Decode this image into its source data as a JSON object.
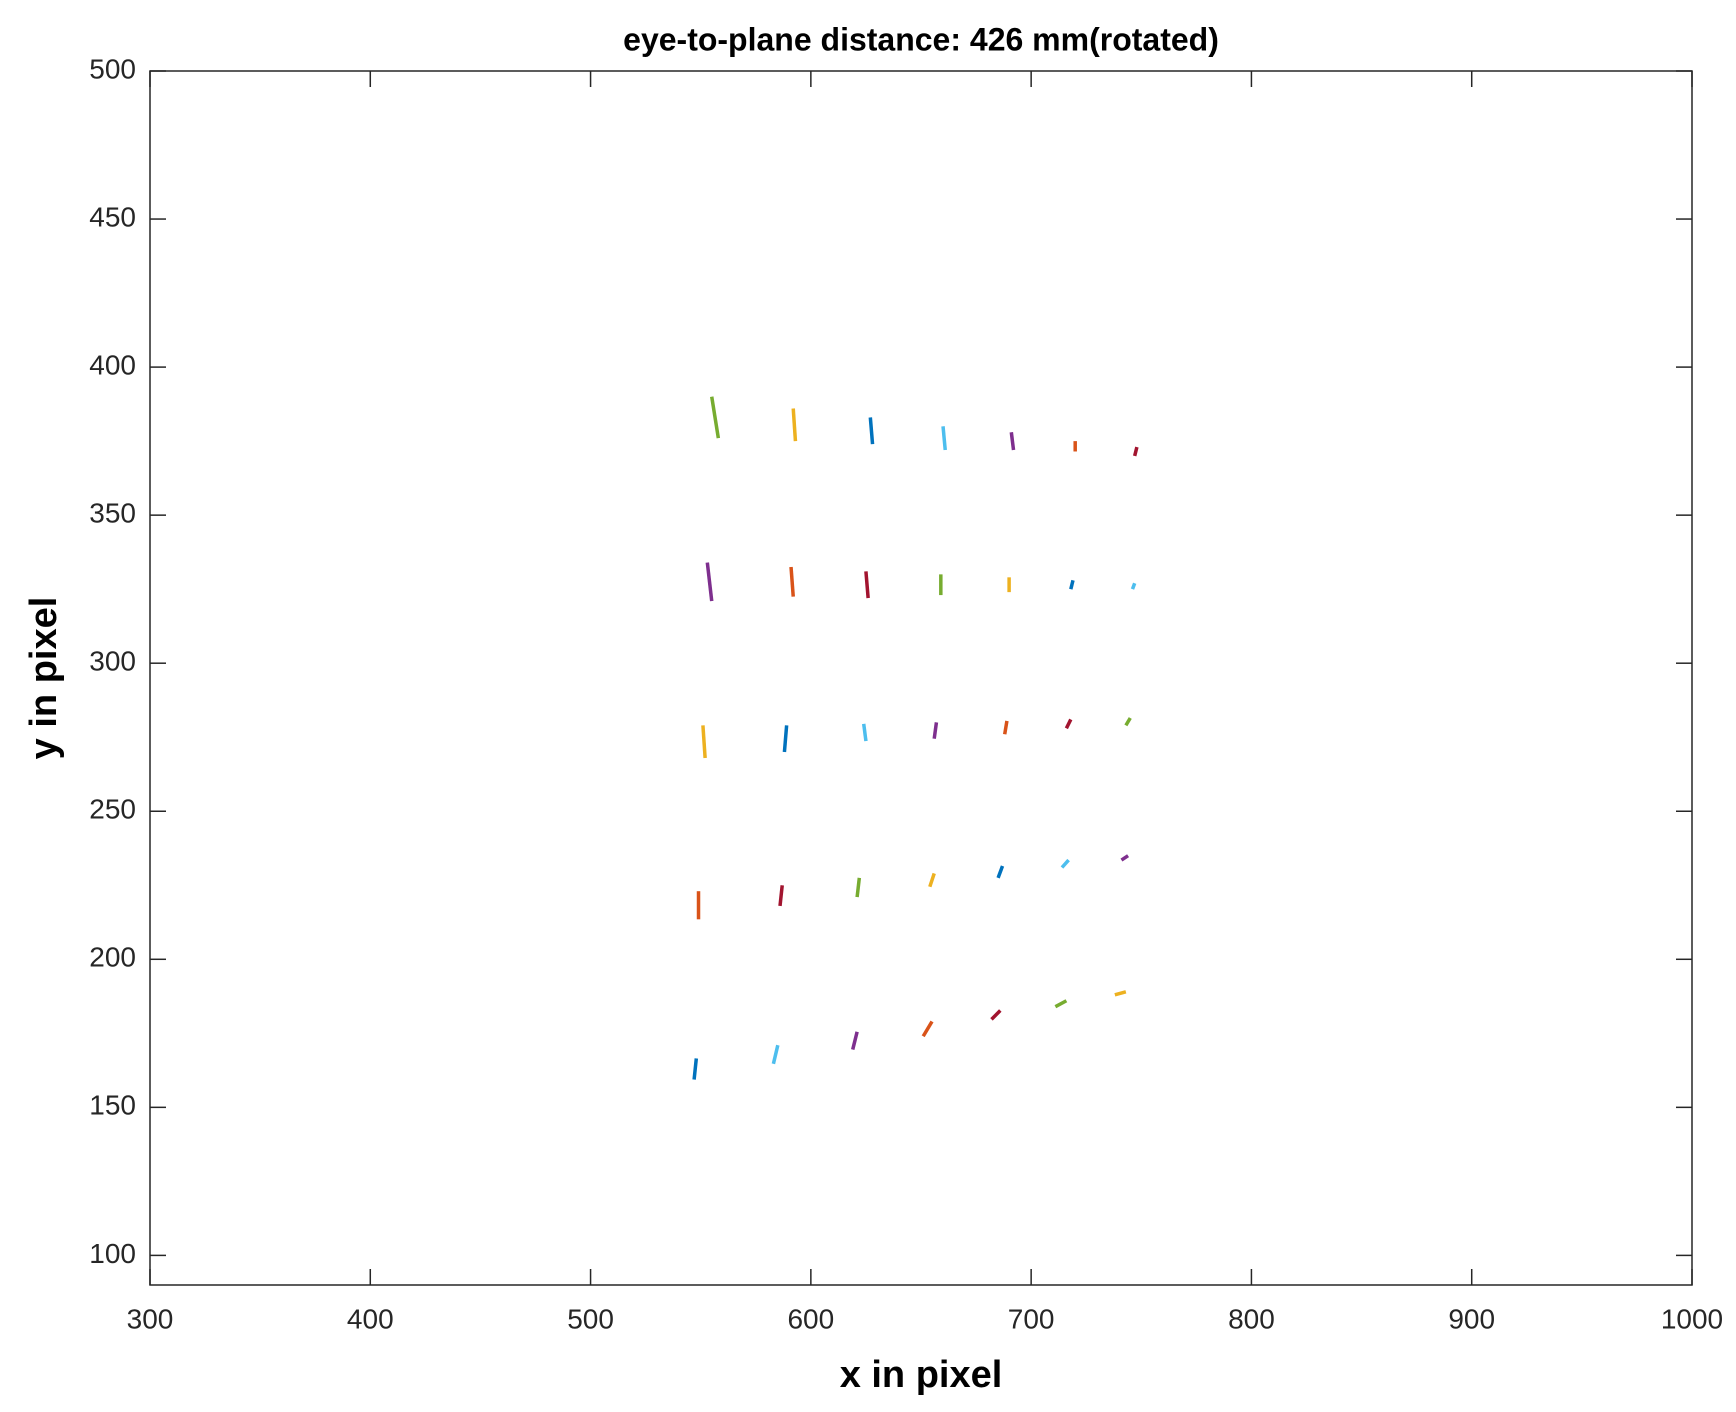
{
  "chart_data": {
    "type": "line",
    "title": "eye-to-plane distance: 426 mm(rotated)",
    "x_label": "x in pixel",
    "y_label": "y in pixel",
    "xlim": [
      300,
      1000
    ],
    "xticks": [
      300,
      400,
      500,
      600,
      700,
      800,
      900,
      1000
    ],
    "ylim": [
      90,
      500
    ],
    "yticks": [
      100,
      150,
      200,
      250,
      300,
      350,
      400,
      450,
      500
    ],
    "grid": false,
    "series": [
      {
        "color": "#77AC30",
        "x": [
          555,
          558
        ],
        "values": [
          390,
          376
        ]
      },
      {
        "color": "#EDB120",
        "x": [
          592,
          593
        ],
        "values": [
          386,
          375
        ]
      },
      {
        "color": "#0072BD",
        "x": [
          627,
          628
        ],
        "values": [
          383,
          374
        ]
      },
      {
        "color": "#4DBEEE",
        "x": [
          660,
          661
        ],
        "values": [
          380,
          372
        ]
      },
      {
        "color": "#7E2F8E",
        "x": [
          691,
          692
        ],
        "values": [
          378,
          372
        ]
      },
      {
        "color": "#D95319",
        "x": [
          720,
          720
        ],
        "values": [
          375,
          371.5
        ]
      },
      {
        "color": "#A2142F",
        "x": [
          748,
          747
        ],
        "values": [
          373,
          370
        ]
      },
      {
        "color": "#7E2F8E",
        "x": [
          553,
          555
        ],
        "values": [
          334,
          321
        ]
      },
      {
        "color": "#D95319",
        "x": [
          591,
          592
        ],
        "values": [
          332.5,
          322.5
        ]
      },
      {
        "color": "#A2142F",
        "x": [
          625,
          626
        ],
        "values": [
          331,
          322
        ]
      },
      {
        "color": "#77AC30",
        "x": [
          659,
          659
        ],
        "values": [
          330,
          323
        ]
      },
      {
        "color": "#EDB120",
        "x": [
          690,
          690
        ],
        "values": [
          329,
          324
        ]
      },
      {
        "color": "#0072BD",
        "x": [
          719,
          718
        ],
        "values": [
          328,
          325
        ]
      },
      {
        "color": "#4DBEEE",
        "x": [
          747,
          746
        ],
        "values": [
          327,
          325
        ]
      },
      {
        "color": "#EDB120",
        "x": [
          551,
          552
        ],
        "values": [
          279,
          268
        ]
      },
      {
        "color": "#0072BD",
        "x": [
          589,
          588
        ],
        "values": [
          279,
          270
        ]
      },
      {
        "color": "#4DBEEE",
        "x": [
          624,
          625
        ],
        "values": [
          279.5,
          273.7
        ]
      },
      {
        "color": "#7E2F8E",
        "x": [
          657,
          656
        ],
        "values": [
          280,
          274.5
        ]
      },
      {
        "color": "#D95319",
        "x": [
          689,
          688
        ],
        "values": [
          280.5,
          276
        ]
      },
      {
        "color": "#A2142F",
        "x": [
          718,
          716
        ],
        "values": [
          281,
          278
        ]
      },
      {
        "color": "#77AC30",
        "x": [
          745,
          743
        ],
        "values": [
          281.5,
          279
        ]
      },
      {
        "color": "#D95319",
        "x": [
          549,
          549
        ],
        "values": [
          223,
          213.5
        ]
      },
      {
        "color": "#A2142F",
        "x": [
          587,
          586
        ],
        "values": [
          225,
          218
        ]
      },
      {
        "color": "#77AC30",
        "x": [
          622,
          621
        ],
        "values": [
          227.5,
          221
        ]
      },
      {
        "color": "#EDB120",
        "x": [
          656,
          654
        ],
        "values": [
          229,
          224.5
        ]
      },
      {
        "color": "#0072BD",
        "x": [
          687,
          685
        ],
        "values": [
          231.5,
          227.5
        ]
      },
      {
        "color": "#4DBEEE",
        "x": [
          717,
          714
        ],
        "values": [
          233.5,
          231
        ]
      },
      {
        "color": "#7E2F8E",
        "x": [
          744,
          741
        ],
        "values": [
          235,
          233.5
        ]
      },
      {
        "color": "#0072BD",
        "x": [
          548,
          547
        ],
        "values": [
          166.5,
          159.4
        ]
      },
      {
        "color": "#4DBEEE",
        "x": [
          585,
          583
        ],
        "values": [
          171,
          164.7
        ]
      },
      {
        "color": "#7E2F8E",
        "x": [
          621,
          619
        ],
        "values": [
          175.5,
          169.5
        ]
      },
      {
        "color": "#D95319",
        "x": [
          655,
          651
        ],
        "values": [
          179,
          174
        ]
      },
      {
        "color": "#A2142F",
        "x": [
          686,
          682
        ],
        "values": [
          182.7,
          179.7
        ]
      },
      {
        "color": "#77AC30",
        "x": [
          716,
          711
        ],
        "values": [
          186,
          184
        ]
      },
      {
        "color": "#EDB120",
        "x": [
          743,
          738
        ],
        "values": [
          189,
          188
        ]
      }
    ]
  }
}
